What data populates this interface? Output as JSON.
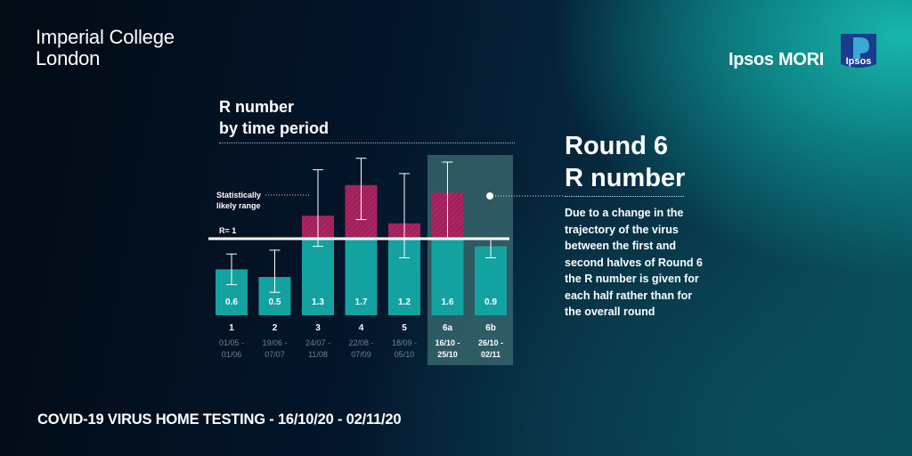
{
  "branding": {
    "left_logo_line1": "Imperial College",
    "left_logo_line2": "London",
    "right_logo_text": "Ipsos MORI",
    "right_badge_text": "Ipsos"
  },
  "panel": {
    "heading_line1": "Round 6",
    "heading_line2": "R number",
    "description": "Due to a change in the trajectory of the virus between the first and second halves of Round 6 the R number is given for each half rather than for the overall round"
  },
  "footer": "COVID-19 VIRUS HOME TESTING - 16/10/20 - 02/11/20",
  "chart_data": {
    "type": "bar",
    "title_line1": "R number",
    "title_line2": "by time period",
    "reference_line": {
      "value": 1,
      "label": "R= 1"
    },
    "annotation": {
      "line1": "Statistically",
      "line2": "likely range"
    },
    "ylim": [
      0,
      2.4
    ],
    "categories": [
      "1",
      "2",
      "3",
      "4",
      "5",
      "6a",
      "6b"
    ],
    "date_ranges": [
      [
        "01/05 -",
        "01/06"
      ],
      [
        "19/06 -",
        "07/07"
      ],
      [
        "24/07 -",
        "11/08"
      ],
      [
        "22/08 -",
        "07/09"
      ],
      [
        "18/09 -",
        "05/10"
      ],
      [
        "16/10 -",
        "25/10"
      ],
      [
        "26/10 -",
        "02/11"
      ]
    ],
    "values": [
      0.6,
      0.5,
      1.3,
      1.7,
      1.2,
      1.6,
      0.9
    ],
    "value_labels": [
      "0.6",
      "0.5",
      "1.3",
      "1.7",
      "1.2",
      "1.6",
      "0.9"
    ],
    "ci_low": [
      0.4,
      0.3,
      0.9,
      1.25,
      0.75,
      1.0,
      0.75
    ],
    "ci_high": [
      0.8,
      0.85,
      1.9,
      2.05,
      1.85,
      2.0,
      1.0
    ],
    "highlighted": [
      "6a",
      "6b"
    ],
    "colors": {
      "below_one": "#14a2a0",
      "above_one": "#a0205a",
      "highlight_panel": "#3a6a70",
      "reference_line": "#ffffff"
    }
  }
}
